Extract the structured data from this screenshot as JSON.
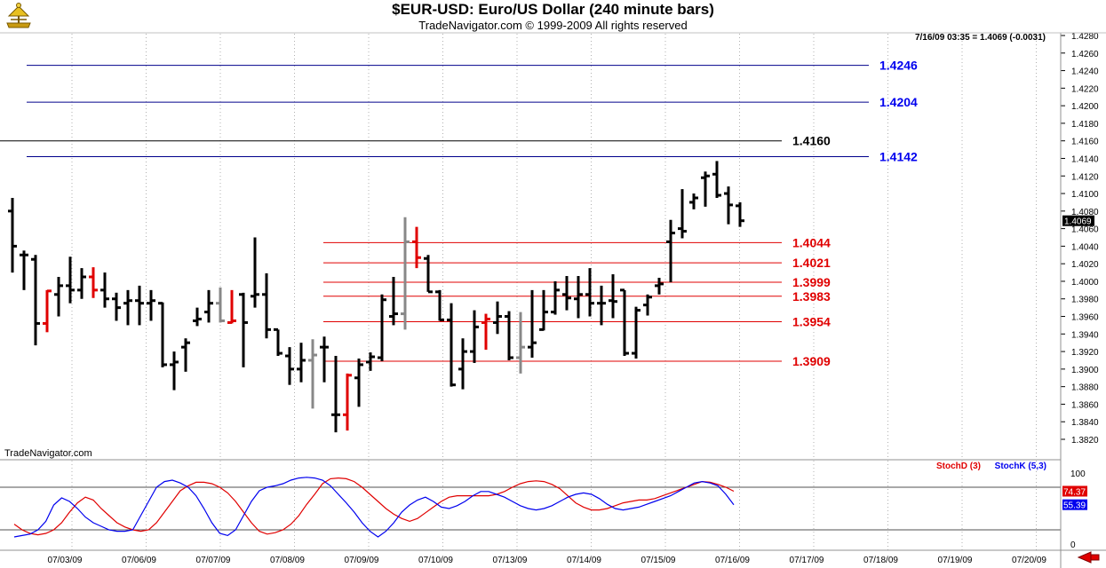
{
  "header": {
    "title": "$EUR-USD:  Euro/US Dollar  (240 minute bars)",
    "subtitle": "TradeNavigator.com © 1999-2009 All rights reserved",
    "status": "7/16/09 03:35 = 1.4069 (-0.0031)",
    "watermark": "TradeNavigator.com"
  },
  "chart_data": {
    "type": "ohlc_bar",
    "symbol": "$EUR-USD",
    "description": "Euro/US Dollar",
    "interval": "240 minute bars",
    "grid": true,
    "y_axis": {
      "position": "right",
      "ylim": [
        1.382,
        1.428
      ],
      "ticks": [
        "1.4280",
        "1.4260",
        "1.4240",
        "1.4220",
        "1.4200",
        "1.4180",
        "1.4160",
        "1.4140",
        "1.4120",
        "1.4100",
        "1.4080",
        "1.4060",
        "1.4040",
        "1.4020",
        "1.4000",
        "1.3980",
        "1.3960",
        "1.3940",
        "1.3920",
        "1.3900",
        "1.3880",
        "1.3860",
        "1.3840",
        "1.3820"
      ]
    },
    "x_axis": {
      "tick_labels": [
        "07/03/09",
        "07/06/09",
        "07/07/09",
        "07/08/09",
        "07/09/09",
        "07/10/09",
        "07/13/09",
        "07/14/09",
        "07/15/09",
        "07/16/09",
        "07/17/09",
        "07/18/09",
        "07/19/09",
        "07/20/09"
      ]
    },
    "last_price_label": "1.4069",
    "bars": [
      {
        "i": 0,
        "o": 1.408,
        "h": 1.4095,
        "l": 1.401,
        "c": 1.404,
        "color": "#000000"
      },
      {
        "i": 1,
        "o": 1.403,
        "h": 1.4035,
        "l": 1.399,
        "c": 1.403,
        "color": "#000000"
      },
      {
        "i": 2,
        "o": 1.4025,
        "h": 1.403,
        "l": 1.3927,
        "c": 1.3952,
        "color": "#000000"
      },
      {
        "i": 3,
        "o": 1.3952,
        "h": 1.399,
        "l": 1.3942,
        "c": 1.3989,
        "color": "#e00000"
      },
      {
        "i": 4,
        "o": 1.3985,
        "h": 1.4005,
        "l": 1.396,
        "c": 1.3995,
        "color": "#000000"
      },
      {
        "i": 5,
        "o": 1.3995,
        "h": 1.4028,
        "l": 1.3975,
        "c": 1.399,
        "color": "#000000"
      },
      {
        "i": 6,
        "o": 1.399,
        "h": 1.4015,
        "l": 1.398,
        "c": 1.4005,
        "color": "#000000"
      },
      {
        "i": 7,
        "o": 1.4005,
        "h": 1.4016,
        "l": 1.3981,
        "c": 1.399,
        "color": "#e00000"
      },
      {
        "i": 8,
        "o": 1.399,
        "h": 1.401,
        "l": 1.397,
        "c": 1.398,
        "color": "#000000"
      },
      {
        "i": 9,
        "o": 1.398,
        "h": 1.3987,
        "l": 1.3955,
        "c": 1.397,
        "color": "#000000"
      },
      {
        "i": 10,
        "o": 1.3975,
        "h": 1.399,
        "l": 1.395,
        "c": 1.3978,
        "color": "#000000"
      },
      {
        "i": 11,
        "o": 1.3978,
        "h": 1.3995,
        "l": 1.395,
        "c": 1.3975,
        "color": "#000000"
      },
      {
        "i": 12,
        "o": 1.3975,
        "h": 1.399,
        "l": 1.3955,
        "c": 1.3978,
        "color": "#000000"
      },
      {
        "i": 13,
        "o": 1.3975,
        "h": 1.3976,
        "l": 1.3902,
        "c": 1.3905,
        "color": "#000000"
      },
      {
        "i": 14,
        "o": 1.3905,
        "h": 1.392,
        "l": 1.3876,
        "c": 1.3908,
        "color": "#000000"
      },
      {
        "i": 15,
        "o": 1.3925,
        "h": 1.3935,
        "l": 1.3897,
        "c": 1.393,
        "color": "#000000"
      },
      {
        "i": 16,
        "o": 1.3955,
        "h": 1.397,
        "l": 1.3949,
        "c": 1.3957,
        "color": "#000000"
      },
      {
        "i": 17,
        "o": 1.3965,
        "h": 1.399,
        "l": 1.3953,
        "c": 1.3975,
        "color": "#000000"
      },
      {
        "i": 18,
        "o": 1.3975,
        "h": 1.3993,
        "l": 1.3953,
        "c": 1.3955,
        "color": "#888888"
      },
      {
        "i": 19,
        "o": 1.3953,
        "h": 1.399,
        "l": 1.3952,
        "c": 1.3955,
        "color": "#e00000"
      },
      {
        "i": 20,
        "o": 1.3985,
        "h": 1.3987,
        "l": 1.3902,
        "c": 1.3953,
        "color": "#000000"
      },
      {
        "i": 21,
        "o": 1.3983,
        "h": 1.405,
        "l": 1.397,
        "c": 1.3985,
        "color": "#000000"
      },
      {
        "i": 22,
        "o": 1.3985,
        "h": 1.4009,
        "l": 1.3935,
        "c": 1.3945,
        "color": "#000000"
      },
      {
        "i": 23,
        "o": 1.3945,
        "h": 1.3945,
        "l": 1.3915,
        "c": 1.3918,
        "color": "#000000"
      },
      {
        "i": 24,
        "o": 1.3915,
        "h": 1.3925,
        "l": 1.3882,
        "c": 1.39,
        "color": "#000000"
      },
      {
        "i": 25,
        "o": 1.39,
        "h": 1.393,
        "l": 1.3885,
        "c": 1.391,
        "color": "#000000"
      },
      {
        "i": 26,
        "o": 1.391,
        "h": 1.3934,
        "l": 1.3855,
        "c": 1.3916,
        "color": "#888888"
      },
      {
        "i": 27,
        "o": 1.3925,
        "h": 1.3937,
        "l": 1.3885,
        "c": 1.3925,
        "color": "#000000"
      },
      {
        "i": 28,
        "o": 1.3848,
        "h": 1.3915,
        "l": 1.3828,
        "c": 1.3848,
        "color": "#000000"
      },
      {
        "i": 29,
        "o": 1.3848,
        "h": 1.3895,
        "l": 1.383,
        "c": 1.3893,
        "color": "#e00000"
      },
      {
        "i": 30,
        "o": 1.389,
        "h": 1.3912,
        "l": 1.3857,
        "c": 1.3905,
        "color": "#000000"
      },
      {
        "i": 31,
        "o": 1.3908,
        "h": 1.3919,
        "l": 1.3898,
        "c": 1.3914,
        "color": "#000000"
      },
      {
        "i": 32,
        "o": 1.3913,
        "h": 1.3985,
        "l": 1.3909,
        "c": 1.3979,
        "color": "#000000"
      },
      {
        "i": 33,
        "o": 1.396,
        "h": 1.4005,
        "l": 1.395,
        "c": 1.3963,
        "color": "#000000"
      },
      {
        "i": 34,
        "o": 1.3963,
        "h": 1.4073,
        "l": 1.3945,
        "c": 1.4045,
        "color": "#888888"
      },
      {
        "i": 35,
        "o": 1.4045,
        "h": 1.4062,
        "l": 1.4015,
        "c": 1.4027,
        "color": "#e00000"
      },
      {
        "i": 36,
        "o": 1.4026,
        "h": 1.403,
        "l": 1.3988,
        "c": 1.3988,
        "color": "#000000"
      },
      {
        "i": 37,
        "o": 1.3988,
        "h": 1.399,
        "l": 1.3955,
        "c": 1.3956,
        "color": "#000000"
      },
      {
        "i": 38,
        "o": 1.3956,
        "h": 1.3975,
        "l": 1.388,
        "c": 1.3882,
        "color": "#000000"
      },
      {
        "i": 39,
        "o": 1.39,
        "h": 1.3935,
        "l": 1.3877,
        "c": 1.392,
        "color": "#000000"
      },
      {
        "i": 40,
        "o": 1.392,
        "h": 1.3967,
        "l": 1.3907,
        "c": 1.3948,
        "color": "#000000"
      },
      {
        "i": 41,
        "o": 1.3953,
        "h": 1.3963,
        "l": 1.3922,
        "c": 1.3957,
        "color": "#e00000"
      },
      {
        "i": 42,
        "o": 1.3953,
        "h": 1.3977,
        "l": 1.394,
        "c": 1.396,
        "color": "#000000"
      },
      {
        "i": 43,
        "o": 1.396,
        "h": 1.3966,
        "l": 1.391,
        "c": 1.3913,
        "color": "#000000"
      },
      {
        "i": 44,
        "o": 1.3913,
        "h": 1.3965,
        "l": 1.3895,
        "c": 1.3925,
        "color": "#888888"
      },
      {
        "i": 45,
        "o": 1.3925,
        "h": 1.399,
        "l": 1.3913,
        "c": 1.393,
        "color": "#000000"
      },
      {
        "i": 46,
        "o": 1.3945,
        "h": 1.399,
        "l": 1.3944,
        "c": 1.3965,
        "color": "#000000"
      },
      {
        "i": 47,
        "o": 1.3965,
        "h": 1.4,
        "l": 1.3962,
        "c": 1.399,
        "color": "#000000"
      },
      {
        "i": 48,
        "o": 1.3985,
        "h": 1.4006,
        "l": 1.3967,
        "c": 1.3981,
        "color": "#000000"
      },
      {
        "i": 49,
        "o": 1.398,
        "h": 1.4006,
        "l": 1.3958,
        "c": 1.3985,
        "color": "#000000"
      },
      {
        "i": 50,
        "o": 1.3985,
        "h": 1.4015,
        "l": 1.396,
        "c": 1.3975,
        "color": "#000000"
      },
      {
        "i": 51,
        "o": 1.3975,
        "h": 1.3995,
        "l": 1.395,
        "c": 1.3975,
        "color": "#000000"
      },
      {
        "i": 52,
        "o": 1.3978,
        "h": 1.4008,
        "l": 1.3958,
        "c": 1.3977,
        "color": "#000000"
      },
      {
        "i": 53,
        "o": 1.399,
        "h": 1.399,
        "l": 1.3915,
        "c": 1.3918,
        "color": "#000000"
      },
      {
        "i": 54,
        "o": 1.3918,
        "h": 1.3971,
        "l": 1.3912,
        "c": 1.3967,
        "color": "#000000"
      },
      {
        "i": 55,
        "o": 1.3973,
        "h": 1.3985,
        "l": 1.3961,
        "c": 1.3982,
        "color": "#000000"
      },
      {
        "i": 56,
        "o": 1.3995,
        "h": 1.4004,
        "l": 1.3985,
        "c": 1.3997,
        "color": "#000000"
      },
      {
        "i": 57,
        "o": 1.4045,
        "h": 1.407,
        "l": 1.3999,
        "c": 1.4055,
        "color": "#000000"
      },
      {
        "i": 58,
        "o": 1.406,
        "h": 1.4105,
        "l": 1.4049,
        "c": 1.4057,
        "color": "#000000"
      },
      {
        "i": 59,
        "o": 1.409,
        "h": 1.41,
        "l": 1.4082,
        "c": 1.4095,
        "color": "#000000"
      },
      {
        "i": 60,
        "o": 1.4118,
        "h": 1.4125,
        "l": 1.4085,
        "c": 1.412,
        "color": "#000000"
      },
      {
        "i": 61,
        "o": 1.4122,
        "h": 1.4137,
        "l": 1.4095,
        "c": 1.4098,
        "color": "#000000"
      },
      {
        "i": 62,
        "o": 1.41,
        "h": 1.4108,
        "l": 1.4065,
        "c": 1.4087,
        "color": "#000000"
      },
      {
        "i": 63,
        "o": 1.4086,
        "h": 1.409,
        "l": 1.4062,
        "c": 1.4069,
        "color": "#000000"
      }
    ],
    "horizontal_lines": [
      {
        "value": 1.4246,
        "label": "1.4246",
        "color": "#00008b",
        "label_color": "#0000ee"
      },
      {
        "value": 1.4204,
        "label": "1.4204",
        "color": "#00008b",
        "label_color": "#0000ee"
      },
      {
        "value": 1.416,
        "label": "1.4160",
        "color": "#000000",
        "label_color": "#000000"
      },
      {
        "value": 1.4142,
        "label": "1.4142",
        "color": "#00008b",
        "label_color": "#0000ee"
      },
      {
        "value": 1.4044,
        "label": "1.4044",
        "color": "#e00000",
        "label_color": "#e00000"
      },
      {
        "value": 1.4021,
        "label": "1.4021",
        "color": "#e00000",
        "label_color": "#e00000"
      },
      {
        "value": 1.3999,
        "label": "1.3999",
        "color": "#e00000",
        "label_color": "#e00000"
      },
      {
        "value": 1.3983,
        "label": "1.3983",
        "color": "#e00000",
        "label_color": "#e00000"
      },
      {
        "value": 1.3954,
        "label": "1.3954",
        "color": "#e00000",
        "label_color": "#e00000"
      },
      {
        "value": 1.3909,
        "label": "1.3909",
        "color": "#e00000",
        "label_color": "#e00000"
      }
    ],
    "indicator": {
      "ylim": [
        0,
        100
      ],
      "ticks": [
        "100",
        "0"
      ],
      "levels": [
        80,
        20
      ],
      "series": [
        {
          "name": "StochD (3)",
          "color": "#e00000",
          "last_label": "74.37",
          "values": [
            28,
            20,
            15,
            13,
            15,
            20,
            30,
            45,
            58,
            66,
            62,
            50,
            40,
            30,
            24,
            20,
            18,
            20,
            30,
            45,
            60,
            75,
            82,
            87,
            87,
            85,
            80,
            72,
            60,
            45,
            30,
            18,
            14,
            16,
            20,
            28,
            40,
            56,
            70,
            85,
            92,
            93,
            92,
            88,
            80,
            70,
            60,
            50,
            42,
            36,
            32,
            36,
            44,
            52,
            60,
            66,
            68,
            68,
            68,
            68,
            68,
            70,
            74,
            80,
            85,
            88,
            89,
            88,
            84,
            78,
            68,
            58,
            52,
            48,
            48,
            50,
            54,
            58,
            60,
            62,
            62,
            64,
            68,
            72,
            76,
            80,
            84,
            88,
            87,
            84,
            80,
            74.4
          ]
        },
        {
          "name": "StochK (5,3)",
          "color": "#0000ee",
          "last_label": "55.39",
          "values": [
            10,
            12,
            14,
            20,
            32,
            55,
            65,
            60,
            50,
            38,
            30,
            25,
            20,
            18,
            18,
            20,
            40,
            60,
            80,
            88,
            90,
            86,
            80,
            68,
            50,
            30,
            15,
            12,
            20,
            40,
            60,
            75,
            80,
            82,
            85,
            90,
            93,
            94,
            93,
            90,
            82,
            70,
            58,
            45,
            30,
            18,
            10,
            18,
            30,
            45,
            55,
            62,
            66,
            60,
            52,
            50,
            54,
            60,
            68,
            74,
            74,
            70,
            66,
            60,
            54,
            50,
            48,
            50,
            54,
            60,
            66,
            70,
            72,
            70,
            64,
            56,
            50,
            48,
            50,
            52,
            56,
            60,
            64,
            68,
            74,
            80,
            86,
            88,
            86,
            82,
            70,
            55.4
          ]
        }
      ]
    }
  }
}
